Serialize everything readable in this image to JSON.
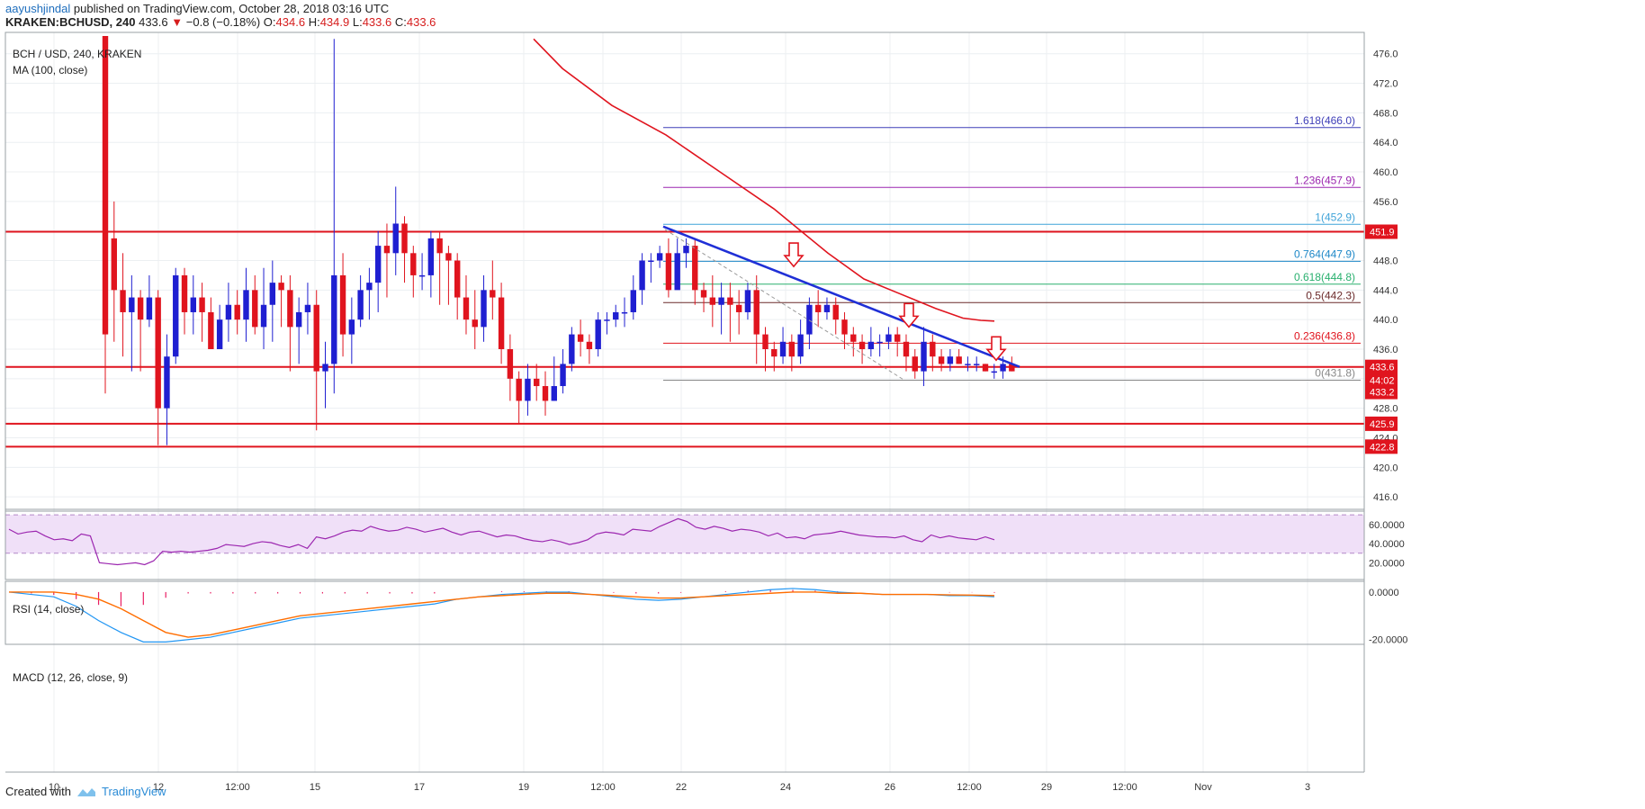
{
  "header": {
    "author": "aayushjindal",
    "published": "published on TradingView.com, October 28, 2018 03:16 UTC",
    "symbol": "KRAKEN:BCHUSD, 240",
    "last": "433.6",
    "change": "−0.8 (−0.18%)",
    "o_label": "O:",
    "o": "434.6",
    "h_label": "H:",
    "h": "434.9",
    "l_label": "L:",
    "l": "433.6",
    "c_label": "C:",
    "c": "433.6"
  },
  "main_legend": {
    "pair": "BCH / USD, 240, KRAKEN",
    "ma": "MA (100, close)"
  },
  "rsi_legend": "RSI (14, close)",
  "macd_legend": "MACD (12, 26, close, 9)",
  "footer": {
    "created": "Created with",
    "brand": "TradingView"
  },
  "colors": {
    "up": "#1f1fd1",
    "down": "#e0141e",
    "ma": "#e0141e",
    "trend": "#1f2fd6",
    "rsi": "#9c27b0",
    "rsi_band": "#f0e0f8",
    "macd": "#2196f3",
    "signal": "#ff6d00",
    "hist": "#e91e63"
  },
  "chart_data": {
    "type": "candlestick",
    "x_ticks": [
      "10",
      "12",
      "12:00",
      "15",
      "17",
      "19",
      "12:00",
      "22",
      "24",
      "26",
      "12:00",
      "29",
      "12:00",
      "Nov",
      "3"
    ],
    "y_ticks": [
      416.0,
      420.0,
      424.0,
      428.0,
      432.0,
      436.0,
      440.0,
      444.0,
      448.0,
      452.0,
      456.0,
      460.0,
      464.0,
      468.0,
      472.0,
      476.0
    ],
    "ylim": [
      414.8,
      478.4
    ],
    "candles": [
      [
        500,
        438,
        500,
        430
      ],
      [
        451,
        444,
        456,
        437
      ],
      [
        444,
        441,
        449,
        435
      ],
      [
        441,
        443,
        446,
        433
      ],
      [
        443,
        440,
        444,
        433
      ],
      [
        440,
        443,
        446,
        439
      ],
      [
        443,
        428,
        444,
        423
      ],
      [
        428,
        435,
        438,
        423
      ],
      [
        435,
        446,
        447,
        434
      ],
      [
        446,
        441,
        447,
        438
      ],
      [
        441,
        443,
        446,
        438
      ],
      [
        443,
        441,
        445,
        437
      ],
      [
        441,
        436,
        443,
        436
      ],
      [
        436,
        440,
        442,
        436
      ],
      [
        440,
        442,
        445,
        437
      ],
      [
        442,
        440,
        444,
        438
      ],
      [
        440,
        444,
        447,
        437
      ],
      [
        444,
        439,
        446,
        438
      ],
      [
        439,
        442,
        447,
        436
      ],
      [
        442,
        445,
        448,
        437
      ],
      [
        445,
        444,
        446,
        439
      ],
      [
        444,
        439,
        446,
        433
      ],
      [
        439,
        441,
        443,
        434
      ],
      [
        441,
        442,
        445,
        438
      ],
      [
        442,
        433,
        444,
        425
      ],
      [
        433,
        434,
        437,
        428
      ],
      [
        434,
        446,
        478,
        430
      ],
      [
        446,
        438,
        449,
        435
      ],
      [
        438,
        440,
        443,
        434
      ],
      [
        440,
        444,
        446,
        439
      ],
      [
        444,
        445,
        447,
        440
      ],
      [
        445,
        450,
        452,
        441
      ],
      [
        450,
        449,
        453,
        443
      ],
      [
        449,
        453,
        458,
        446
      ],
      [
        453,
        449,
        454,
        445
      ],
      [
        449,
        446,
        450,
        443
      ],
      [
        446,
        446,
        449,
        444
      ],
      [
        446,
        451,
        452,
        443
      ],
      [
        451,
        449,
        452,
        442
      ],
      [
        449,
        448,
        450,
        442
      ],
      [
        448,
        443,
        449,
        440
      ],
      [
        443,
        440,
        446,
        438
      ],
      [
        440,
        439,
        444,
        436
      ],
      [
        439,
        444,
        446,
        437
      ],
      [
        444,
        443,
        448,
        440
      ],
      [
        443,
        436,
        445,
        434
      ],
      [
        436,
        432,
        438,
        429
      ],
      [
        432,
        429,
        433,
        426
      ],
      [
        429,
        432,
        434,
        427
      ],
      [
        432,
        431,
        434,
        429
      ],
      [
        431,
        429,
        433,
        427
      ],
      [
        429,
        431,
        435,
        429
      ],
      [
        431,
        434,
        436,
        430
      ],
      [
        434,
        438,
        439,
        433
      ],
      [
        438,
        437,
        440,
        435
      ],
      [
        437,
        436,
        438,
        434
      ],
      [
        436,
        440,
        441,
        435
      ],
      [
        440,
        440,
        441,
        438
      ],
      [
        440,
        441,
        442,
        439
      ],
      [
        441,
        441,
        443,
        439
      ],
      [
        441,
        444,
        446,
        440
      ],
      [
        444,
        448,
        449,
        442
      ],
      [
        448,
        448,
        449,
        445
      ],
      [
        448,
        449,
        450,
        447
      ],
      [
        449,
        444,
        451,
        443
      ],
      [
        444,
        449,
        451,
        446
      ],
      [
        449,
        450,
        451,
        447
      ],
      [
        450,
        444,
        451,
        442
      ],
      [
        444,
        443,
        445,
        441
      ],
      [
        443,
        442,
        446,
        439
      ],
      [
        442,
        443,
        445,
        438
      ],
      [
        443,
        442,
        445,
        437
      ],
      [
        442,
        441,
        444,
        438
      ],
      [
        441,
        444,
        445,
        440
      ],
      [
        444,
        438,
        446,
        434
      ],
      [
        438,
        436,
        439,
        433
      ],
      [
        436,
        435,
        437,
        433
      ],
      [
        435,
        437,
        439,
        434
      ],
      [
        437,
        435,
        438,
        433
      ],
      [
        435,
        438,
        440,
        434
      ],
      [
        438,
        442,
        443,
        436
      ],
      [
        442,
        441,
        444,
        439
      ],
      [
        441,
        442,
        443,
        440
      ],
      [
        442,
        440,
        443,
        438
      ],
      [
        440,
        438,
        441,
        436
      ],
      [
        438,
        437,
        439,
        435
      ],
      [
        437,
        436,
        438,
        434
      ],
      [
        436,
        437,
        439,
        435
      ],
      [
        437,
        437,
        438,
        435
      ],
      [
        437,
        438,
        439,
        436
      ],
      [
        438,
        437,
        439,
        435
      ],
      [
        437,
        435,
        438,
        433
      ],
      [
        435,
        433,
        436,
        432
      ],
      [
        433,
        437,
        439,
        431
      ],
      [
        437,
        435,
        438,
        433
      ],
      [
        435,
        434,
        436,
        433
      ],
      [
        434,
        435,
        436,
        433
      ],
      [
        435,
        434,
        436,
        434
      ],
      [
        434,
        434,
        435,
        433
      ],
      [
        434,
        434,
        435,
        433
      ],
      [
        434,
        433,
        434,
        433
      ],
      [
        433,
        433,
        434,
        432
      ],
      [
        433,
        434,
        435,
        432
      ],
      [
        434,
        433,
        435,
        433
      ]
    ],
    "ma100": [
      [
        593,
        478.0
      ],
      [
        625,
        474.0
      ],
      [
        680,
        469.0
      ],
      [
        740,
        465.0
      ],
      [
        800,
        460.0
      ],
      [
        860,
        455.0
      ],
      [
        920,
        449.0
      ],
      [
        960,
        445.5
      ],
      [
        1000,
        443.5
      ],
      [
        1040,
        441.5
      ],
      [
        1070,
        440.2
      ],
      [
        1090,
        439.9
      ],
      [
        1105,
        439.8
      ]
    ],
    "trendline": {
      "from": [
        737,
        452.6
      ],
      "to": [
        1133,
        433.6
      ]
    },
    "dashed_trendline": {
      "from": [
        739,
        452.2
      ],
      "to": [
        1005,
        431.8
      ]
    },
    "horizontal_levels": [
      {
        "value": 451.9,
        "label": "451.9"
      },
      {
        "value": 433.6,
        "label": "433.6"
      },
      {
        "value": 425.9,
        "label": "425.9"
      },
      {
        "value": 422.8,
        "label": "422.8"
      }
    ],
    "price_tags": [
      {
        "value": 433.6,
        "label": "433.6"
      },
      {
        "value": 431.8,
        "label": "44:02"
      },
      {
        "value": 430.2,
        "label": "433.2"
      }
    ],
    "fibonacci": [
      {
        "ratio": "1.618",
        "value": 466.0,
        "color": "#3f3fb8"
      },
      {
        "ratio": "1.236",
        "value": 457.9,
        "color": "#9c27b0"
      },
      {
        "ratio": "1",
        "value": 452.9,
        "color": "#3fa3d8"
      },
      {
        "ratio": "0.764",
        "value": 447.9,
        "color": "#1e88c8"
      },
      {
        "ratio": "0.618",
        "value": 444.8,
        "color": "#2ab06f"
      },
      {
        "ratio": "0.5",
        "value": 442.3,
        "color": "#6b2b2b"
      },
      {
        "ratio": "0.236",
        "value": 436.8,
        "color": "#e0141e"
      },
      {
        "ratio": "0",
        "value": 431.8,
        "color": "#888888"
      }
    ],
    "arrows_at_price": [
      447.2,
      439.0,
      434.5
    ],
    "rsi": {
      "y_ticks": [
        "60.0000",
        "40.0000",
        "20.0000"
      ],
      "ylim": [
        10,
        72
      ],
      "band": [
        30,
        70
      ],
      "values": [
        55,
        50,
        52,
        53,
        48,
        44,
        45,
        43,
        50,
        48,
        20,
        19,
        18,
        19,
        20,
        18,
        22,
        32,
        31,
        32,
        31,
        32,
        33,
        35,
        39,
        38,
        37,
        40,
        42,
        41,
        38,
        36,
        39,
        35,
        47,
        45,
        48,
        52,
        54,
        53,
        58,
        55,
        53,
        54,
        57,
        55,
        52,
        54,
        56,
        52,
        49,
        52,
        53,
        50,
        47,
        49,
        48,
        45,
        43,
        42,
        44,
        42,
        39,
        41,
        44,
        50,
        52,
        51,
        49,
        55,
        54,
        53,
        58,
        62,
        66,
        63,
        57,
        55,
        58,
        56,
        53,
        55,
        54,
        52,
        48,
        51,
        46,
        47,
        45,
        49,
        50,
        51,
        53,
        51,
        49,
        48,
        47,
        47,
        46,
        48,
        44,
        42,
        49,
        46,
        48,
        46,
        45,
        44,
        47,
        44
      ]
    },
    "macd": {
      "y_ticks": [
        "0.0000",
        "-20.0000"
      ],
      "ylim": [
        -22,
        3
      ],
      "macd_line": [
        0,
        -1,
        -2,
        -6,
        -12,
        -17,
        -21,
        -21,
        -20,
        -19,
        -17,
        -15,
        -13,
        -11,
        -10,
        -9,
        -8,
        -7,
        -6,
        -5,
        -3,
        -2,
        -1,
        -0.5,
        0,
        0,
        -1,
        -2,
        -3,
        -3.5,
        -3,
        -2,
        -1,
        0,
        1,
        1.5,
        1,
        0,
        -0.5,
        -1,
        -1,
        -1,
        -1.5,
        -1.5,
        -2
      ],
      "signal_line": [
        0,
        0,
        0,
        -1,
        -3,
        -7,
        -12,
        -17,
        -19,
        -18,
        -16,
        -14,
        -12,
        -10,
        -9,
        -8,
        -7,
        -6,
        -5,
        -4,
        -3,
        -2,
        -1.5,
        -1,
        -0.5,
        -0.5,
        -1,
        -1.5,
        -2,
        -2.5,
        -2.5,
        -2,
        -1.5,
        -1,
        -0.5,
        0,
        0,
        -0.5,
        -0.5,
        -1,
        -1,
        -1,
        -1.2,
        -1.3,
        -1.5
      ]
    }
  }
}
